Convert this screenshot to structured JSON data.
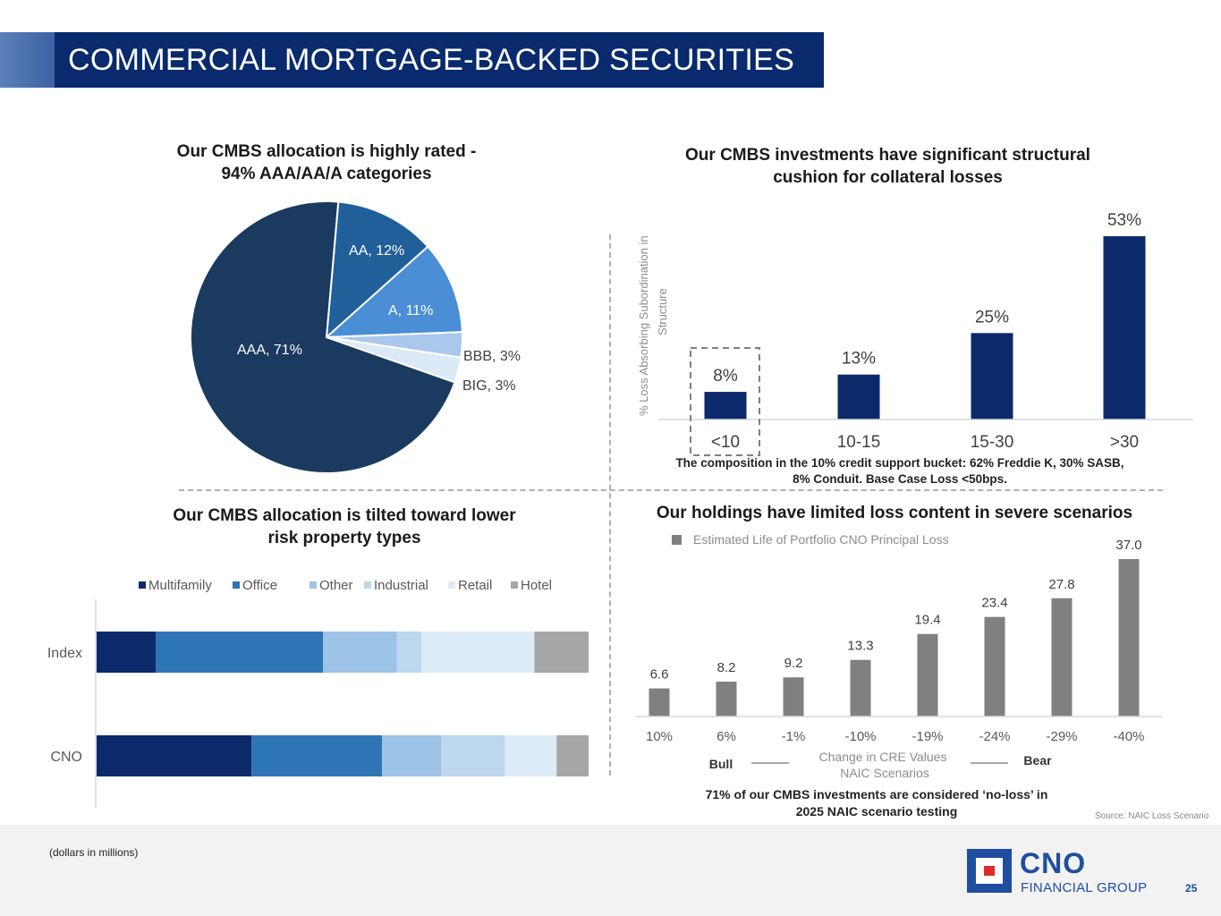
{
  "page": {
    "title": "COMMERCIAL MORTGAGE-BACKED SECURITIES",
    "footnote": "(dollars in millions)",
    "source": "Source: NAIC Loss Scenario",
    "logo_main": "CNO",
    "logo_sub": "FINANCIAL GROUP",
    "page_number": "25"
  },
  "colors": {
    "navy": "#0a2a6e",
    "bar_navy": "#0c2a6b",
    "gray_bar": "#808080",
    "logo_blue": "#1f4ea0",
    "logo_red": "#e12b2b"
  },
  "chart_data": [
    {
      "type": "pie",
      "title_line1": "Our CMBS allocation is highly rated -",
      "title_line2": "94% AAA/AA/A categories",
      "slices": [
        {
          "label": "AAA, 71%",
          "value": 71,
          "color": "#1a3a60"
        },
        {
          "label": "AA, 12%",
          "value": 12,
          "color": "#215f9a"
        },
        {
          "label": "A, 11%",
          "value": 11,
          "color": "#4a8fd6"
        },
        {
          "label": "BBB, 3%",
          "value": 3,
          "color": "#a9c8ec"
        },
        {
          "label": "BIG, 3%",
          "value": 3,
          "color": "#dce9f7"
        }
      ]
    },
    {
      "type": "bar",
      "title_line1": "Our CMBS investments have significant structural",
      "title_line2": "cushion for collateral losses",
      "ylabel_line1": "% Loss Absorbing Subordination in",
      "ylabel_line2": "Structure",
      "categories": [
        "<10",
        "10-15",
        "15-30",
        ">30"
      ],
      "values": [
        8,
        13,
        25,
        53
      ],
      "value_labels": [
        "8%",
        "13%",
        "25%",
        "53%"
      ],
      "ylim": [
        0,
        60
      ],
      "highlighted_category": "<10",
      "note_line1": "The composition in the 10% credit support bucket: 62% Freddie K, 30% SASB,",
      "note_line2": "8% Conduit.  Base Case Loss <50bps."
    },
    {
      "type": "bar",
      "orientation": "horizontal-stacked-100",
      "title_line1": "Our CMBS allocation is tilted toward lower",
      "title_line2": "risk property types",
      "categories": [
        "Index",
        "CNO"
      ],
      "legend_position": "top",
      "series": [
        {
          "name": "Multifamily",
          "color": "#0c2a6b",
          "values": [
            12,
            31.5
          ]
        },
        {
          "name": "Office",
          "color": "#2e75b6",
          "values": [
            34,
            26.5
          ]
        },
        {
          "name": "Other",
          "color": "#9dc3e6",
          "values": [
            15,
            12
          ]
        },
        {
          "name": "Industrial",
          "color": "#bdd7ee",
          "values": [
            5,
            13
          ]
        },
        {
          "name": "Retail",
          "color": "#ddebf7",
          "values": [
            23,
            10.5
          ]
        },
        {
          "name": "Hotel",
          "color": "#a6a6a6",
          "values": [
            11,
            6.5
          ]
        }
      ]
    },
    {
      "type": "bar",
      "title": "Our holdings have limited loss content in severe scenarios",
      "legend": "Estimated Life of Portfolio CNO Principal Loss",
      "categories": [
        "10%",
        "6%",
        "-1%",
        "-10%",
        "-19%",
        "-24%",
        "-29%",
        "-40%"
      ],
      "values": [
        6.6,
        8.2,
        9.2,
        13.3,
        19.4,
        23.4,
        27.8,
        37.0
      ],
      "value_labels": [
        "6.6",
        "8.2",
        "9.2",
        "13.3",
        "19.4",
        "23.4",
        "27.8",
        "37.0"
      ],
      "ylim": [
        0,
        37
      ],
      "xlabel_line1": "Change in CRE Values",
      "xlabel_line2": "NAIC Scenarios",
      "bull_label": "Bull",
      "bear_label": "Bear",
      "note_line1": "71% of our CMBS investments are considered ‘no-loss’ in",
      "note_line2": "2025 NAIC scenario testing"
    }
  ]
}
